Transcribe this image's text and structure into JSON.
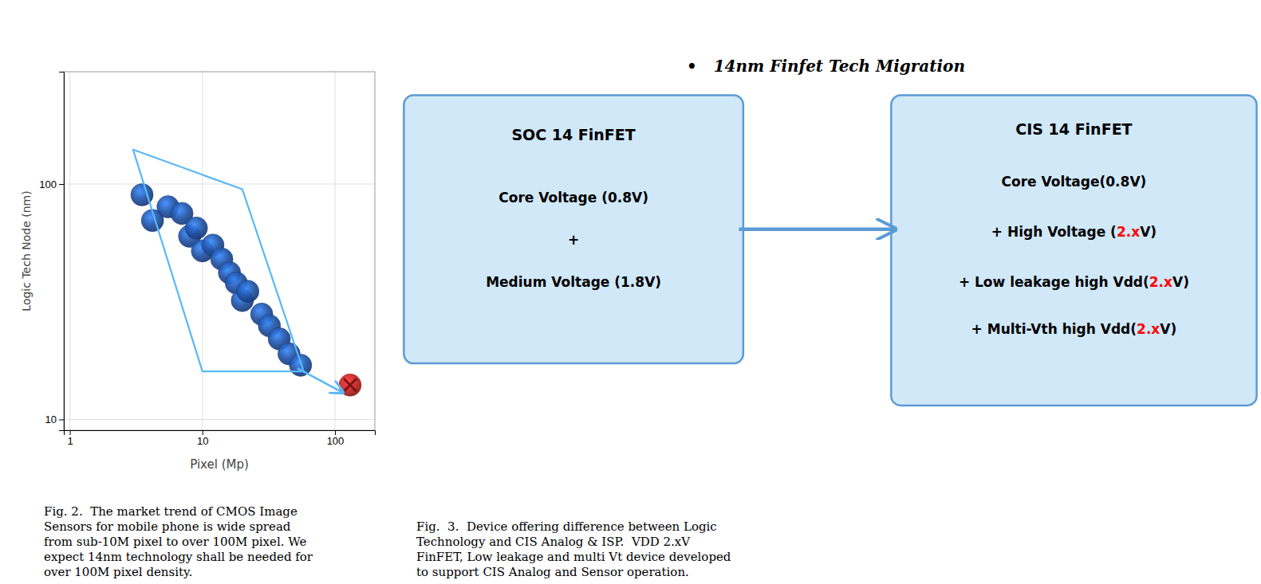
{
  "chart_data": {
    "type": "scatter",
    "xlabel": "Pixel (Mp)",
    "ylabel": "Logic Tech Node (nm)",
    "log": true,
    "grid": true,
    "xlim": [
      0.9,
      200
    ],
    "ylim": [
      9,
      300
    ],
    "xticks": [
      1,
      10,
      100
    ],
    "yticks": [
      10,
      100
    ],
    "series": [
      {
        "color": "#2255aa",
        "marker": "o",
        "x": [
          3.5,
          4.2,
          5.5,
          7,
          8,
          9,
          10,
          12,
          14,
          16,
          18,
          20,
          22,
          28,
          32,
          38,
          45,
          55
        ],
        "values": [
          90,
          70,
          80,
          75,
          60,
          65,
          52,
          55,
          48,
          42,
          38,
          32,
          35,
          28,
          25,
          22,
          19,
          17
        ]
      },
      {
        "color": "#cc2222",
        "marker": "x",
        "x": [
          130
        ],
        "values": [
          14
        ]
      },
      {
        "type": "line",
        "color": "#5bb8f5",
        "x": [
          3.0,
          20,
          58,
          10,
          3.0
        ],
        "values": [
          140,
          95,
          16,
          16,
          140
        ]
      },
      {
        "type": "arrow",
        "color": "#5bb8f5",
        "x": [
          52,
          115
        ],
        "values": [
          16.5,
          13
        ]
      }
    ]
  },
  "diagram": {
    "title": "•   14nm Finfet Tech Migration",
    "box_color": "#d0e8f8",
    "box_edge_color": "#5b9bd5",
    "arrow_color": "#5b9bd5",
    "boxes": [
      {
        "title": "SOC 14 FinFET",
        "lines": [
          [
            {
              "text": "Core Voltage (0.8V)"
            }
          ],
          [
            {
              "text": "+"
            }
          ],
          [
            {
              "text": "Medium Voltage (1.8V)"
            }
          ]
        ]
      },
      {
        "title": "CIS 14 FinFET",
        "lines": [
          [
            {
              "text": "Core Voltage(0.8V)"
            }
          ],
          [
            {
              "text": "+ High Voltage ("
            },
            {
              "text": "2.x",
              "color": "red"
            },
            {
              "text": "V)"
            }
          ],
          [
            {
              "text": "+ Low leakage high Vdd("
            },
            {
              "text": "2.x",
              "color": "red"
            },
            {
              "text": "V)"
            }
          ],
          [
            {
              "text": "+ Multi-Vth high Vdd("
            },
            {
              "text": "2.x",
              "color": "red"
            },
            {
              "text": "V)"
            }
          ]
        ]
      }
    ]
  },
  "captions": [
    "Fig. 2.  The market trend of CMOS Image\nSensors for mobile phone is wide spread\nfrom sub-10M pixel to over 100M pixel. We\nexpect 14nm technology shall be needed for\nover 100M pixel density.",
    "Fig.  3.  Device offering difference between Logic\nTechnology and CIS Analog & ISP.  VDD 2.xV\nFinFET, Low leakage and multi Vt device developed\nto support CIS Analog and Sensor operation."
  ]
}
